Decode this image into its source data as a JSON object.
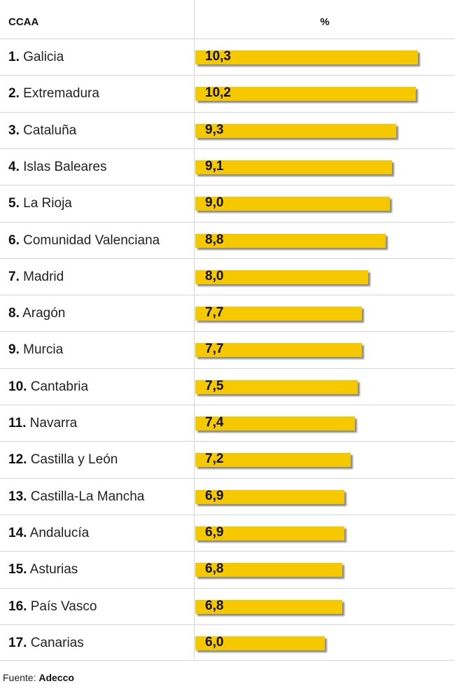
{
  "header": {
    "col_region": "CCAA",
    "col_value": "%"
  },
  "chart_data": {
    "type": "bar",
    "orientation": "horizontal",
    "categories": [
      "Galicia",
      "Extremadura",
      "Cataluña",
      "Islas Baleares",
      "La Rioja",
      "Comunidad Valenciana",
      "Madrid",
      "Aragón",
      "Murcia",
      "Cantabria",
      "Navarra",
      "Castilla y León",
      "Castilla-La Mancha",
      "Andalucía",
      "Asturias",
      "País Vasco",
      "Canarias"
    ],
    "values": [
      10.3,
      10.2,
      9.3,
      9.1,
      9.0,
      8.8,
      8.0,
      7.7,
      7.7,
      7.5,
      7.4,
      7.2,
      6.9,
      6.9,
      6.8,
      6.8,
      6.0
    ],
    "value_labels": [
      "10,3",
      "10,2",
      "9,3",
      "9,1",
      "9,0",
      "8,8",
      "8,0",
      "7,7",
      "7,7",
      "7,5",
      "7,4",
      "7,2",
      "6,9",
      "6,9",
      "6,8",
      "6,8",
      "6,0"
    ],
    "xlim": [
      0,
      10.3
    ],
    "grid": false,
    "bar_color": "#f5c800"
  },
  "source": {
    "label": "Fuente:",
    "name": "Adecco"
  }
}
